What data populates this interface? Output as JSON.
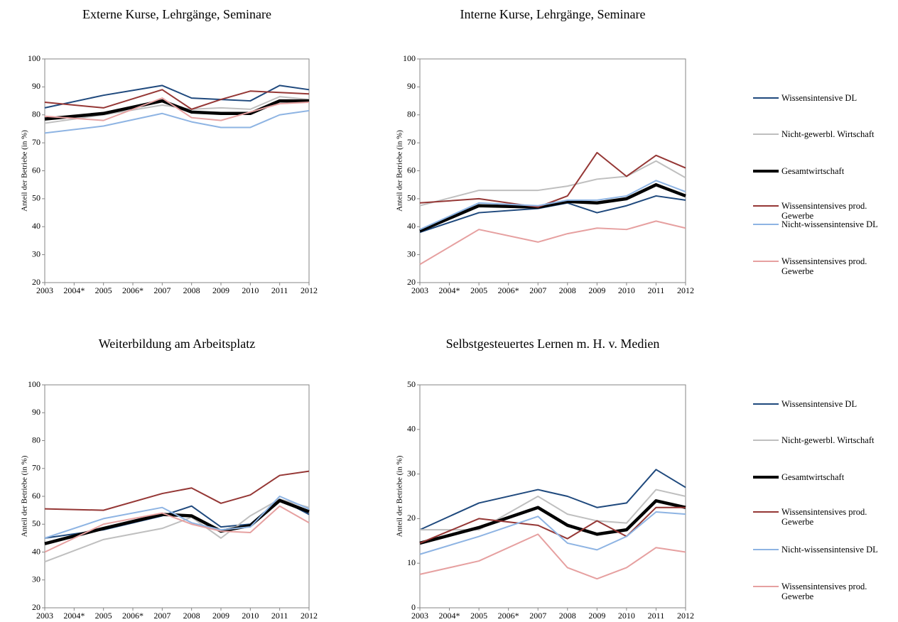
{
  "chart_data": [
    {
      "type": "line",
      "title": "Externe Kurse, Lehrgänge, Seminare",
      "y_label": "Anteil der Betriebe (in %)",
      "x": [
        2003,
        2005,
        2007,
        2008,
        2009,
        2010,
        2011,
        2012
      ],
      "xlim": [
        2003,
        2012
      ],
      "xticks": [
        2003,
        {
          "value": 2004,
          "label": "2004*"
        },
        2005,
        {
          "value": 2006,
          "label": "2006*"
        },
        2007,
        2008,
        2009,
        2010,
        2011,
        2012
      ],
      "ylim": [
        20,
        100
      ],
      "yticks": [
        20,
        30,
        40,
        50,
        60,
        70,
        80,
        90,
        100
      ],
      "grid": false,
      "series": [
        {
          "color": "#1f497d",
          "values": [
            82.5,
            87,
            90.5,
            86,
            85.5,
            85,
            90.5,
            89
          ]
        },
        {
          "color": "#bfbfbf",
          "values": [
            77,
            80,
            83.5,
            82,
            82.5,
            82,
            86.5,
            85.5
          ]
        },
        {
          "color": "#000000",
          "values": [
            78.5,
            80.5,
            85,
            81,
            80.5,
            80.5,
            85,
            85
          ]
        },
        {
          "color": "#953735",
          "values": [
            84.5,
            82.5,
            89,
            82,
            85.5,
            88.5,
            88,
            87.5
          ]
        },
        {
          "color": "#8eb4e3",
          "values": [
            73.5,
            76,
            80.5,
            77.5,
            75.5,
            75.5,
            80,
            81.5
          ]
        },
        {
          "color": "#e6a0a0",
          "values": [
            79.5,
            78,
            86,
            79,
            78,
            81,
            84,
            84.5
          ]
        }
      ]
    },
    {
      "type": "line",
      "title": "Interne Kurse, Lehrgänge, Seminare",
      "y_label": "Anteil der Betriebe (in %)",
      "x": [
        2003,
        2005,
        2007,
        2008,
        2009,
        2010,
        2011,
        2012
      ],
      "xlim": [
        2003,
        2012
      ],
      "xticks": [
        2003,
        {
          "value": 2004,
          "label": "2004*"
        },
        2005,
        {
          "value": 2006,
          "label": "2006*"
        },
        2007,
        2008,
        2009,
        2010,
        2011,
        2012
      ],
      "ylim": [
        20,
        100
      ],
      "yticks": [
        20,
        30,
        40,
        50,
        60,
        70,
        80,
        90,
        100
      ],
      "grid": false,
      "series": [
        {
          "name": "Wissensintensive DL",
          "color": "#1f497d",
          "values": [
            38,
            45,
            46.5,
            48.5,
            45,
            47.5,
            51,
            49.5
          ]
        },
        {
          "name": "Nicht-gewerbl. Wirtschaft",
          "color": "#bfbfbf",
          "values": [
            47.5,
            53,
            53,
            54.5,
            57,
            58,
            63.5,
            57.5
          ]
        },
        {
          "name": "Gesamtwirtschaft",
          "color": "#000000",
          "values": [
            38.5,
            47.5,
            47,
            49,
            48.5,
            50,
            55,
            51
          ]
        },
        {
          "name": "Wissensintensives prod. Gewerbe",
          "color": "#953735",
          "values": [
            48.5,
            50,
            47,
            51,
            66.5,
            58,
            65.5,
            61
          ]
        },
        {
          "name": "Nicht-wissensintensive DL",
          "color": "#8eb4e3",
          "values": [
            39,
            48.5,
            47.5,
            49.5,
            49.5,
            51,
            56.5,
            52.5
          ]
        },
        {
          "name": "Wissensintensives prod. Gewerbe",
          "color": "#e6a0a0",
          "values": [
            26.5,
            39,
            34.5,
            37.5,
            39.5,
            39,
            42,
            39.5
          ]
        }
      ]
    },
    {
      "type": "line",
      "title": "Weiterbildung am Arbeitsplatz",
      "y_label": "Anteil der Betriebe (in %)",
      "x": [
        2003,
        2005,
        2007,
        2008,
        2009,
        2010,
        2011,
        2012
      ],
      "xlim": [
        2003,
        2012
      ],
      "xticks": [
        2003,
        {
          "value": 2004,
          "label": "2004*"
        },
        2005,
        {
          "value": 2006,
          "label": "2006*"
        },
        2007,
        2008,
        2009,
        2010,
        2011,
        2012
      ],
      "ylim": [
        20,
        100
      ],
      "yticks": [
        20,
        30,
        40,
        50,
        60,
        70,
        80,
        90,
        100
      ],
      "grid": false,
      "series": [
        {
          "color": "#1f497d",
          "values": [
            45,
            48,
            53,
            56.5,
            49,
            50,
            59,
            53.5
          ]
        },
        {
          "color": "#bfbfbf",
          "values": [
            36.5,
            44.5,
            48.5,
            52.5,
            45,
            53,
            59,
            56
          ]
        },
        {
          "color": "#000000",
          "values": [
            43,
            48.5,
            53.5,
            53,
            47.5,
            49.5,
            58.5,
            54.5
          ]
        },
        {
          "color": "#953735",
          "values": [
            55.5,
            55,
            61,
            63,
            57.5,
            60.5,
            67.5,
            69
          ]
        },
        {
          "color": "#8eb4e3",
          "values": [
            45,
            52,
            56,
            50.5,
            48,
            49,
            60,
            55.5
          ]
        },
        {
          "color": "#e6a0a0",
          "values": [
            40,
            50,
            54,
            50,
            47.5,
            47,
            56.5,
            50.5
          ]
        }
      ]
    },
    {
      "type": "line",
      "title": "Selbstgesteuertes Lernen m. H. v. Medien",
      "y_label": "Anteil der Betriebe (in %)",
      "x": [
        2003,
        2005,
        2007,
        2008,
        2009,
        2010,
        2011,
        2012
      ],
      "xlim": [
        2003,
        2012
      ],
      "xticks": [
        2003,
        {
          "value": 2004,
          "label": "2004*"
        },
        2005,
        {
          "value": 2006,
          "label": "2006*"
        },
        2007,
        2008,
        2009,
        2010,
        2011,
        2012
      ],
      "ylim": [
        0,
        50
      ],
      "yticks": [
        0,
        10,
        20,
        30,
        40,
        50
      ],
      "grid": false,
      "series": [
        {
          "name": "Wissensintensive DL",
          "color": "#1f497d",
          "values": [
            17.5,
            23.5,
            26.5,
            25,
            22.5,
            23.5,
            31,
            27
          ]
        },
        {
          "name": "Nicht-gewerbl. Wirtschaft",
          "color": "#bfbfbf",
          "values": [
            17.5,
            17.5,
            25,
            21,
            19.5,
            19,
            26.5,
            25
          ]
        },
        {
          "name": "Gesamtwirtschaft",
          "color": "#000000",
          "values": [
            14.5,
            18,
            22.5,
            18.5,
            16.5,
            17.5,
            24,
            22.5
          ]
        },
        {
          "name": "Wissensintensives prod. Gewerbe",
          "color": "#953735",
          "values": [
            14.5,
            20,
            18.5,
            15.5,
            19.5,
            16,
            22.5,
            22.5
          ]
        },
        {
          "name": "Nicht-wissensintensive DL",
          "color": "#8eb4e3",
          "values": [
            12,
            16,
            20.5,
            14.5,
            13,
            16,
            21.5,
            21
          ]
        },
        {
          "name": "Wissensintensives prod. Gewerbe",
          "color": "#e6a0a0",
          "values": [
            7.5,
            10.5,
            16.5,
            9,
            6.5,
            9,
            13.5,
            12.5
          ]
        }
      ]
    }
  ]
}
